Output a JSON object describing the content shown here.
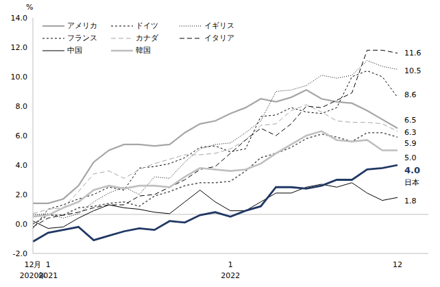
{
  "chart_data": {
    "type": "line",
    "y_unit": "%",
    "categories": [
      "12月",
      "1",
      null,
      null,
      null,
      null,
      null,
      null,
      null,
      null,
      null,
      null,
      null,
      "1",
      null,
      null,
      null,
      null,
      null,
      null,
      null,
      null,
      null,
      null,
      "12"
    ],
    "category_years": [
      "2020年",
      "2021",
      null,
      null,
      null,
      null,
      null,
      null,
      null,
      null,
      null,
      null,
      null,
      "2022",
      null,
      null,
      null,
      null,
      null,
      null,
      null,
      null,
      null,
      null,
      null
    ],
    "ylim": [
      -2,
      14
    ],
    "yticks": [
      {
        "value": -2,
        "label": "-2.0"
      },
      {
        "value": 0,
        "label": "0.0"
      },
      {
        "value": 2,
        "label": "2.0"
      },
      {
        "value": 4,
        "label": "4.0"
      },
      {
        "value": 6,
        "label": "6.0"
      },
      {
        "value": 8,
        "label": "8.0"
      },
      {
        "value": 10,
        "label": "10.0"
      },
      {
        "value": 12,
        "label": "12.0"
      },
      {
        "value": 14,
        "label": "14.0"
      }
    ],
    "reference_y": 0.65,
    "grid": false,
    "legend_entries": [
      "アメリカ",
      "ドイツ",
      "イギリス",
      "フランス",
      "カナダ",
      "イタリア",
      "中国",
      "韓国"
    ],
    "series": [
      {
        "name": "アメリカ",
        "color": "#a6a6a6",
        "line_style": "solid",
        "end_label": "6.5",
        "values": [
          1.4,
          1.4,
          1.7,
          2.6,
          4.2,
          5.0,
          5.4,
          5.4,
          5.3,
          5.4,
          6.2,
          6.8,
          7.0,
          7.5,
          7.9,
          8.5,
          8.3,
          8.6,
          9.1,
          8.5,
          8.3,
          8.2,
          7.7,
          7.1,
          6.5
        ]
      },
      {
        "name": "ドイツ",
        "color": "#000000",
        "line_style": "dashed",
        "end_label": "8.6",
        "values": [
          -0.3,
          1.0,
          1.3,
          1.7,
          2.0,
          2.5,
          2.3,
          3.8,
          3.9,
          4.1,
          4.5,
          5.2,
          5.3,
          4.9,
          5.1,
          7.3,
          7.4,
          7.9,
          7.6,
          7.5,
          7.9,
          10.0,
          10.4,
          10.0,
          8.6
        ]
      },
      {
        "name": "イギリス",
        "color": "#000000",
        "line_style": "dotted",
        "end_label": "10.5",
        "values": [
          0.6,
          0.7,
          0.4,
          0.7,
          1.5,
          2.1,
          2.5,
          2.0,
          3.2,
          3.1,
          4.2,
          5.1,
          5.4,
          5.5,
          6.2,
          7.0,
          9.0,
          9.1,
          9.4,
          10.1,
          9.9,
          10.1,
          11.1,
          10.7,
          10.5
        ]
      },
      {
        "name": "フランス",
        "color": "#595959",
        "line_style": "dashed",
        "end_label": "5.9",
        "values": [
          0.0,
          0.6,
          0.6,
          1.1,
          1.2,
          1.4,
          1.5,
          1.2,
          1.9,
          2.2,
          2.6,
          2.8,
          2.8,
          2.9,
          3.6,
          4.5,
          4.8,
          5.2,
          5.8,
          6.1,
          5.9,
          5.6,
          6.2,
          6.2,
          5.9
        ]
      },
      {
        "name": "カナダ",
        "color": "#a6a6a6",
        "line_style": "long_dashed",
        "end_label": "6.3",
        "values": [
          0.7,
          1.0,
          1.1,
          2.2,
          3.4,
          3.6,
          3.1,
          3.7,
          4.1,
          4.4,
          4.7,
          4.7,
          4.8,
          5.1,
          5.7,
          6.7,
          6.8,
          7.7,
          8.1,
          7.6,
          7.0,
          6.9,
          6.9,
          6.8,
          6.3
        ]
      },
      {
        "name": "イタリア",
        "color": "#000000",
        "line_style": "long_dashed",
        "end_label": "11.6",
        "values": [
          -0.2,
          0.4,
          0.6,
          0.8,
          1.1,
          1.3,
          1.3,
          1.9,
          2.0,
          2.5,
          3.0,
          3.7,
          3.9,
          4.8,
          5.7,
          6.5,
          6.0,
          6.8,
          8.0,
          7.9,
          8.4,
          8.9,
          11.8,
          11.8,
          11.6
        ]
      },
      {
        "name": "中国",
        "color": "#000000",
        "line_style": "solid",
        "end_label": "1.8",
        "values": [
          0.2,
          -0.3,
          -0.2,
          0.4,
          0.9,
          1.3,
          1.1,
          1.0,
          0.8,
          0.7,
          1.5,
          2.3,
          1.5,
          0.9,
          0.9,
          1.5,
          2.1,
          2.1,
          2.5,
          2.7,
          2.5,
          2.8,
          2.1,
          1.6,
          1.8
        ]
      },
      {
        "name": "韓国",
        "color": "#bfbfbf",
        "line_style": "solid",
        "end_label": "5.0",
        "values": [
          0.5,
          0.6,
          1.1,
          1.5,
          2.3,
          2.6,
          2.4,
          2.6,
          2.6,
          2.5,
          3.2,
          3.8,
          3.7,
          3.6,
          3.7,
          4.1,
          4.8,
          5.4,
          6.0,
          6.3,
          5.7,
          5.6,
          5.7,
          5.0,
          5.0
        ]
      },
      {
        "name": "日本",
        "color": "#203864",
        "line_style": "solid",
        "end_label": "4.0",
        "values": [
          -1.2,
          -0.6,
          -0.4,
          -0.2,
          -1.1,
          -0.8,
          -0.5,
          -0.3,
          -0.4,
          0.2,
          0.1,
          0.6,
          0.8,
          0.5,
          0.9,
          1.2,
          2.5,
          2.5,
          2.4,
          2.6,
          3.0,
          3.0,
          3.7,
          3.8,
          4.0
        ]
      }
    ]
  }
}
